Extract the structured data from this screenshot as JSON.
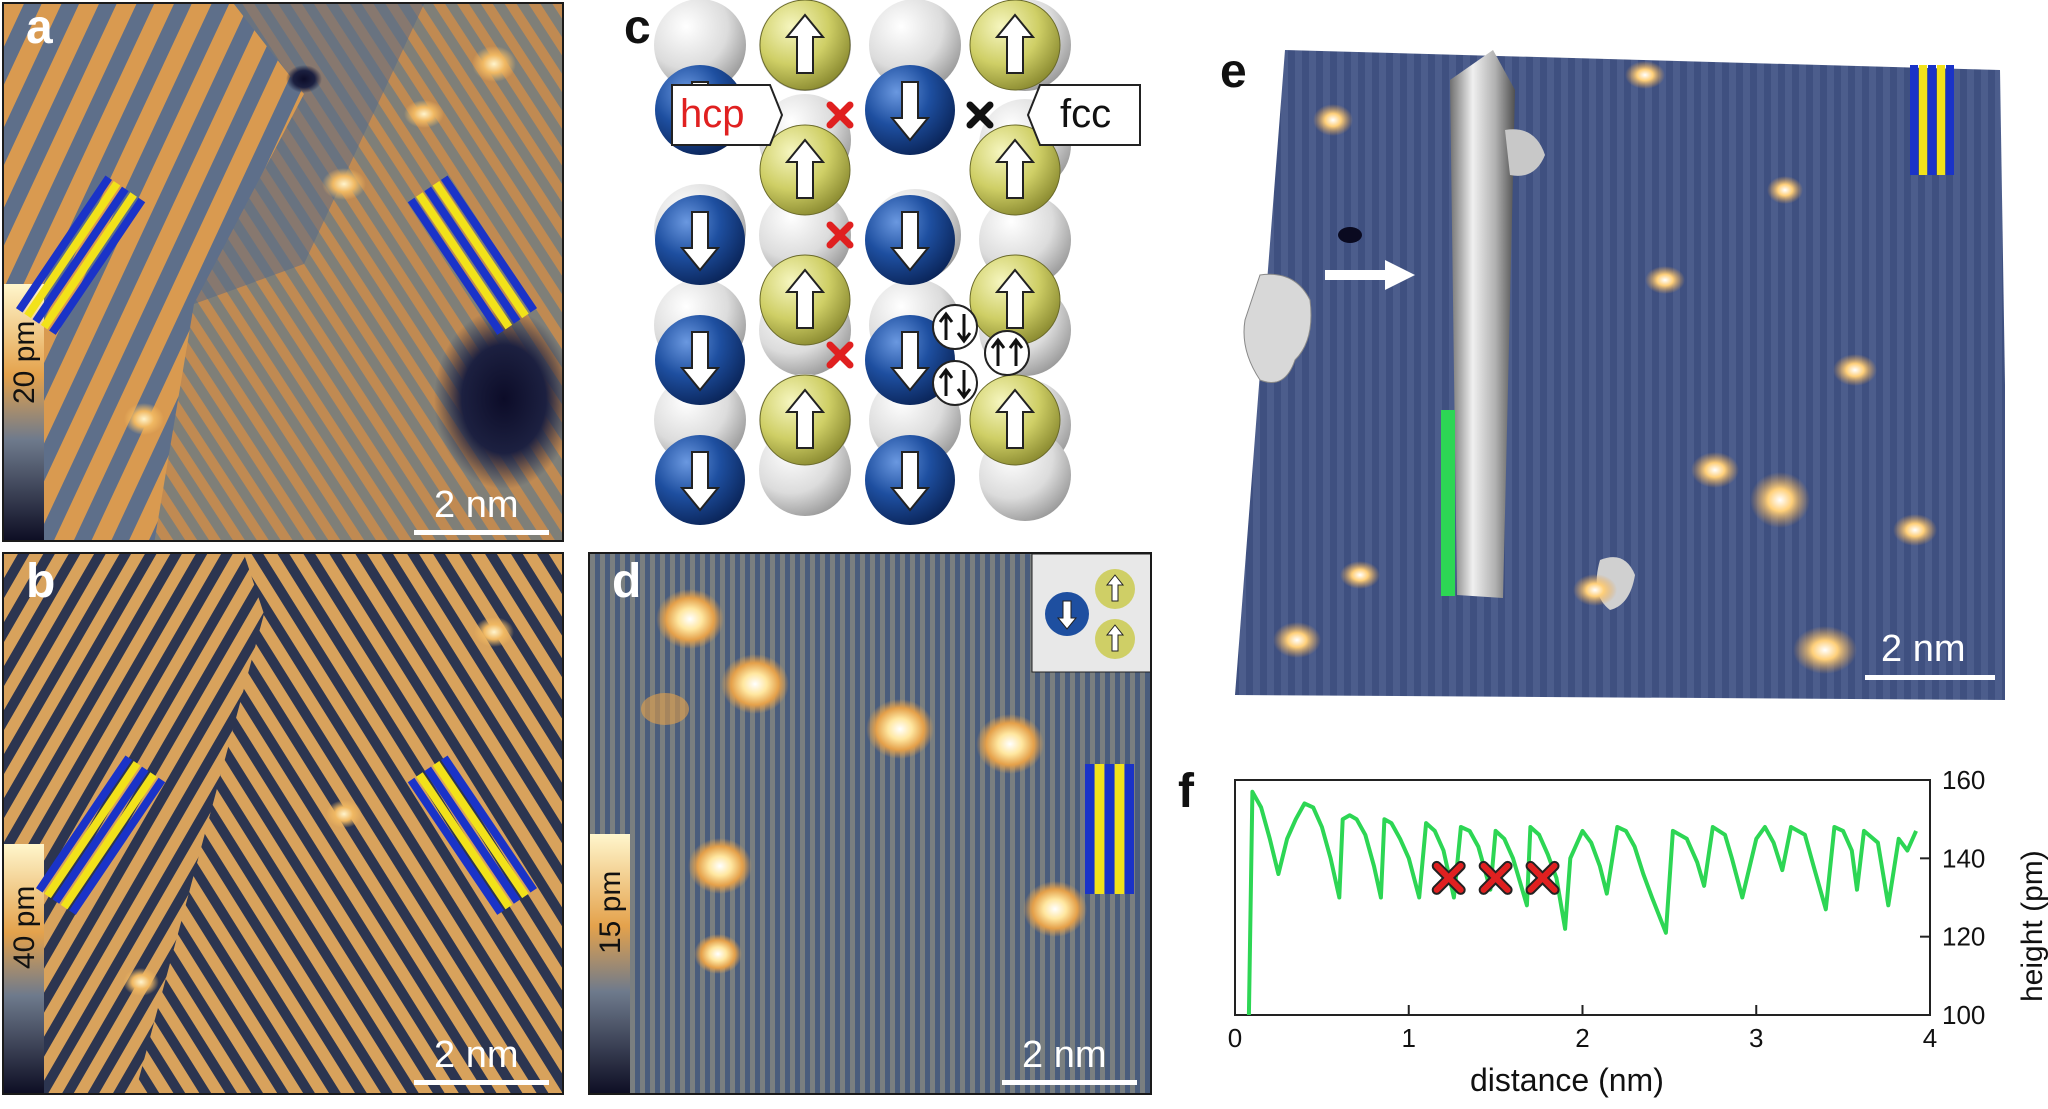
{
  "figure": {
    "panels": {
      "a": {
        "label": "a",
        "colorbar_label": "20 pm",
        "scalebar_label": "2 nm"
      },
      "b": {
        "label": "b",
        "colorbar_label": "40 pm",
        "scalebar_label": "2 nm"
      },
      "c": {
        "label": "c",
        "hcp_label": "hcp",
        "fcc_label": "fcc"
      },
      "d": {
        "label": "d",
        "colorbar_label": "15 pm",
        "scalebar_label": "2 nm"
      },
      "e": {
        "label": "e",
        "scalebar_label": "2 nm"
      },
      "f": {
        "label": "f"
      }
    },
    "colors": {
      "stm_orange": "#e8a048",
      "stm_blue": "#3c5078",
      "spin_down_blue": "#1e4fa0",
      "spin_up_yellow": "#c9c860",
      "substrate_grey": "#d8d8d8",
      "stripe_blue": "#1a33c8",
      "stripe_yellow": "#f2e21a",
      "profile_green": "#2dd654",
      "cross_red": "#e02020"
    },
    "icons": [
      "up-arrow-icon",
      "down-arrow-icon",
      "cross-marker-icon",
      "spin-pair-icon"
    ]
  },
  "chart_data": {
    "type": "line",
    "xlabel": "distance (nm)",
    "ylabel": "height (pm)",
    "xlim": [
      0,
      4
    ],
    "ylim": [
      100,
      160
    ],
    "xticks": [
      0,
      1,
      2,
      3,
      4
    ],
    "yticks": [
      100,
      120,
      140,
      160
    ],
    "xtick_labels": [
      "0",
      "1",
      "2",
      "3",
      "4"
    ],
    "ytick_labels": [
      "100",
      "120",
      "140",
      "160"
    ],
    "series": [
      {
        "color": "#2dd654",
        "x": [
          0.08,
          0.1,
          0.15,
          0.2,
          0.25,
          0.3,
          0.35,
          0.4,
          0.45,
          0.5,
          0.55,
          0.6,
          0.62,
          0.66,
          0.7,
          0.75,
          0.8,
          0.84,
          0.86,
          0.9,
          0.95,
          1.0,
          1.06,
          1.1,
          1.15,
          1.2,
          1.26,
          1.3,
          1.35,
          1.4,
          1.47,
          1.5,
          1.55,
          1.6,
          1.68,
          1.7,
          1.75,
          1.8,
          1.85,
          1.9,
          1.93,
          2.0,
          2.05,
          2.1,
          2.14,
          2.2,
          2.25,
          2.3,
          2.35,
          2.4,
          2.48,
          2.52,
          2.6,
          2.66,
          2.7,
          2.75,
          2.82,
          2.86,
          2.92,
          3.0,
          3.05,
          3.1,
          3.15,
          3.2,
          3.28,
          3.33,
          3.4,
          3.45,
          3.5,
          3.55,
          3.58,
          3.62,
          3.7,
          3.76,
          3.82,
          3.87,
          3.92
        ],
        "y": [
          100,
          157,
          153,
          145,
          136,
          145,
          150,
          154,
          153,
          148,
          140,
          130,
          150,
          151,
          150,
          146,
          138,
          130,
          150,
          149,
          145,
          140,
          130,
          149,
          147,
          142,
          130,
          148,
          147,
          143,
          132,
          147,
          145,
          140,
          128,
          148,
          146,
          141,
          135,
          122,
          140,
          147,
          144,
          138,
          131,
          148,
          147,
          143,
          136,
          130,
          121,
          147,
          145,
          139,
          133,
          148,
          146,
          140,
          130,
          145,
          148,
          144,
          137,
          148,
          146,
          138,
          127,
          148,
          147,
          142,
          132,
          147,
          144,
          128,
          145,
          142,
          147
        ]
      }
    ],
    "annotations": [
      {
        "type": "cross",
        "x": 1.23,
        "y": 135
      },
      {
        "type": "cross",
        "x": 1.5,
        "y": 135
      },
      {
        "type": "cross",
        "x": 1.77,
        "y": 135
      }
    ]
  }
}
